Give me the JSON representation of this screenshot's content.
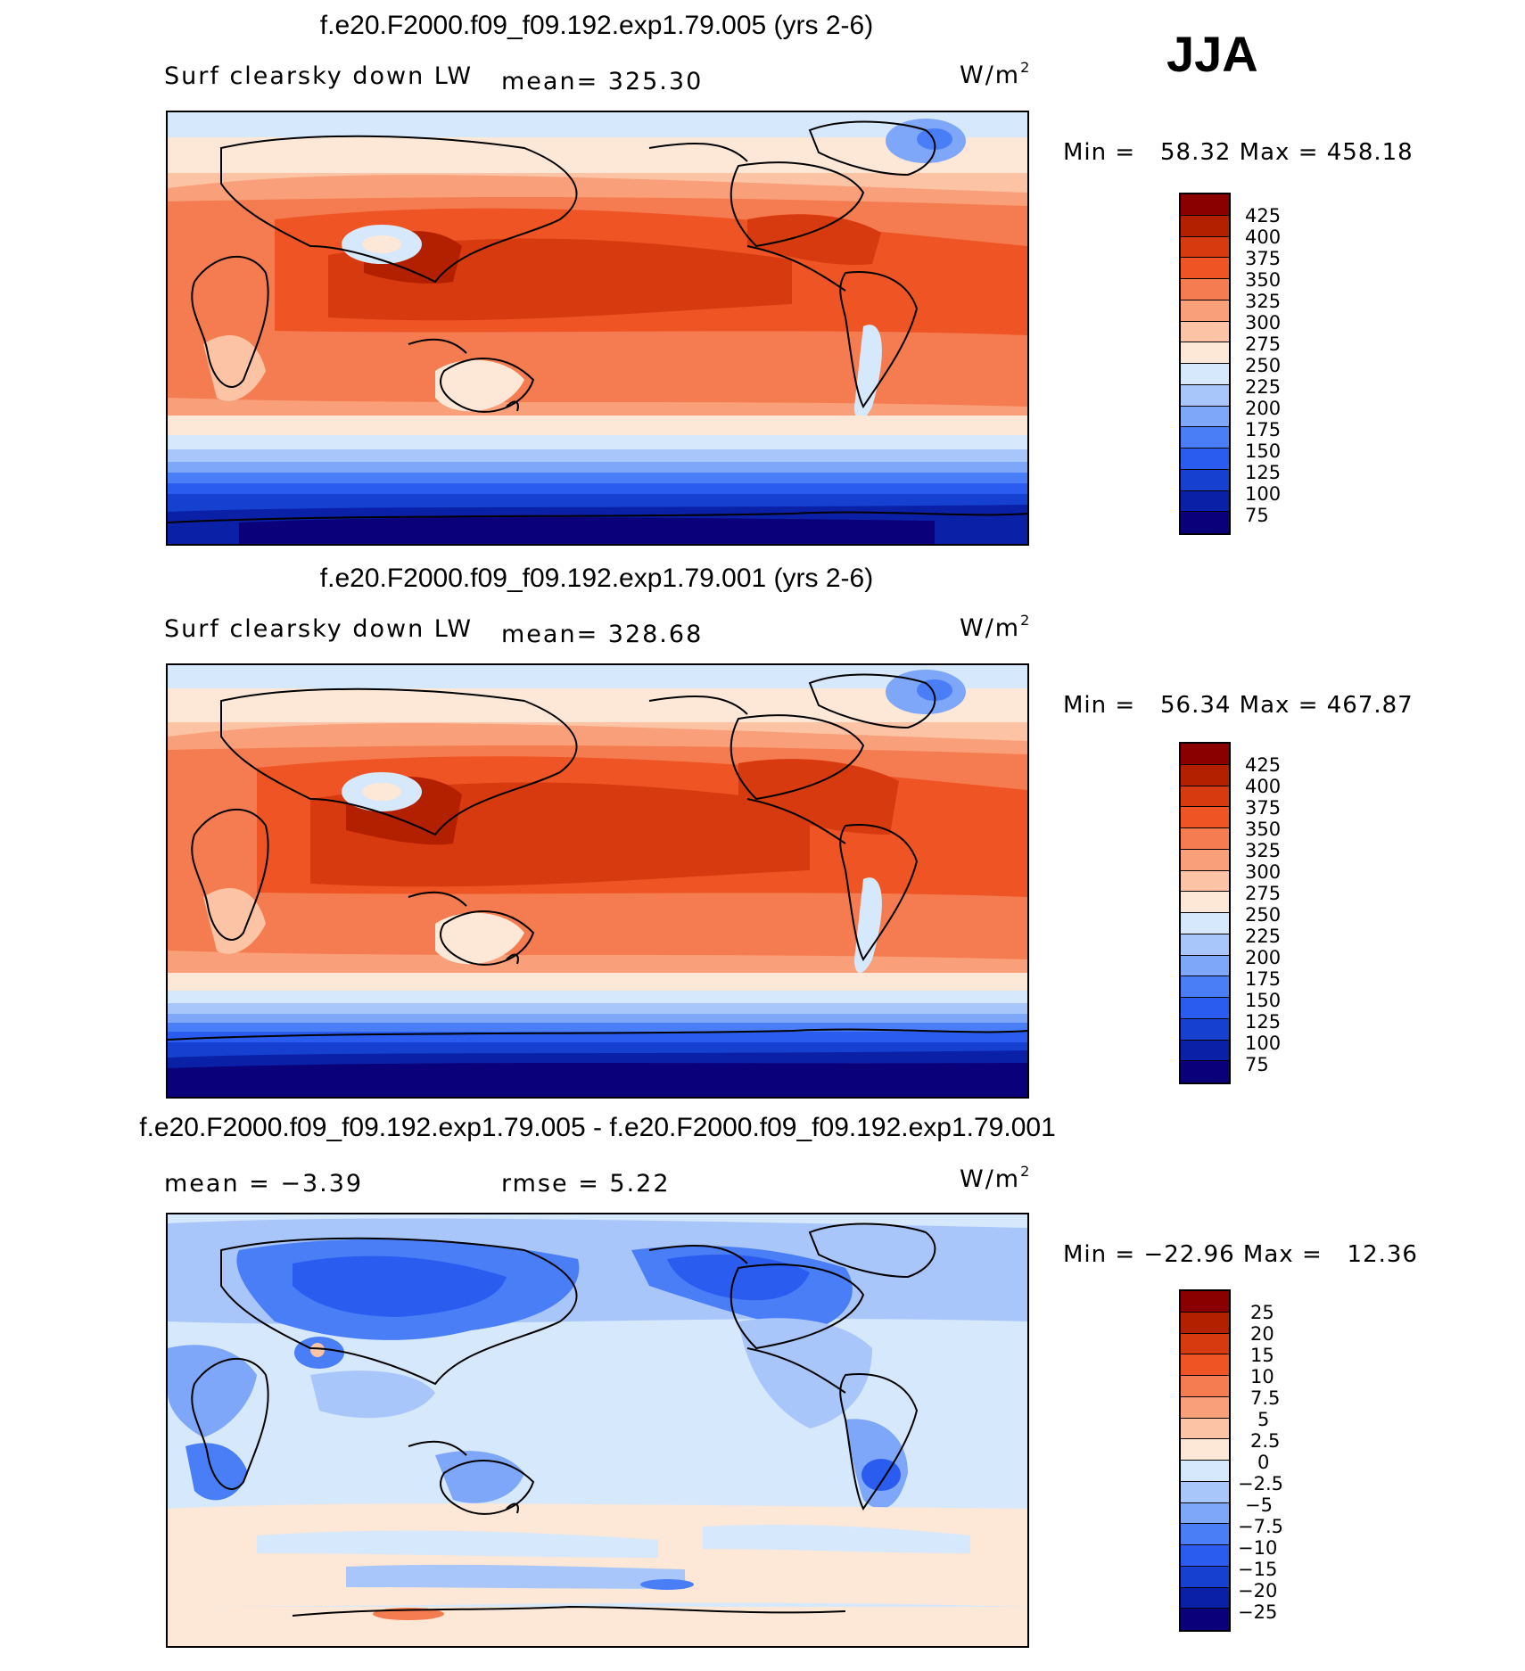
{
  "season": "JJA",
  "colors": {
    "abs_scale": [
      "#0a007a",
      "#0a20a6",
      "#1540d0",
      "#2a5cf0",
      "#4a7ef6",
      "#7ea6f9",
      "#a9c6fb",
      "#d6e8fc",
      "#fde7d6",
      "#fcc4a4",
      "#f9a07a",
      "#f57c50",
      "#ef5424",
      "#d83a10",
      "#b22000",
      "#8a0000"
    ],
    "diff_scale": [
      "#0a007a",
      "#0a20a6",
      "#1540d0",
      "#2a5cf0",
      "#4a7ef6",
      "#7ea6f9",
      "#a9c6fb",
      "#d6e8fc",
      "#fde7d6",
      "#fcc4a4",
      "#f9a07a",
      "#f57c50",
      "#ef5424",
      "#d83a10",
      "#b22000",
      "#8a0000"
    ]
  },
  "panels": [
    {
      "id": "panel-1",
      "title": "f.e20.F2000.f09_f09.192.exp1.79.005 (yrs 2-6)",
      "variable": "Surf clearsky down LW",
      "stat": "mean= 325.30",
      "units": "W/m",
      "units_sup": "2",
      "minmax": "Min =   58.32 Max = 458.18",
      "colorbar_labels": [
        "425",
        "400",
        "375",
        "350",
        "325",
        "300",
        "275",
        "250",
        "225",
        "200",
        "175",
        "150",
        "125",
        "100",
        "75"
      ]
    },
    {
      "id": "panel-2",
      "title": "f.e20.F2000.f09_f09.192.exp1.79.001 (yrs 2-6)",
      "variable": "Surf clearsky down LW",
      "stat": "mean= 328.68",
      "units": "W/m",
      "units_sup": "2",
      "minmax": "Min =   56.34 Max = 467.87",
      "colorbar_labels": [
        "425",
        "400",
        "375",
        "350",
        "325",
        "300",
        "275",
        "250",
        "225",
        "200",
        "175",
        "150",
        "125",
        "100",
        "75"
      ]
    },
    {
      "id": "panel-3",
      "title": "f.e20.F2000.f09_f09.192.exp1.79.005 - f.e20.F2000.f09_f09.192.exp1.79.001",
      "stat_mean": "mean =   −3.39",
      "stat_rmse": "rmse =     5.22",
      "units": "W/m",
      "units_sup": "2",
      "minmax": "Min = −22.96 Max =   12.36",
      "colorbar_labels": [
        "25",
        "20",
        "15",
        "10",
        "7.5",
        "5",
        "2.5",
        "0",
        "−2.5",
        "−5",
        "−7.5",
        "−10",
        "−15",
        "−20",
        "−25"
      ]
    }
  ]
}
